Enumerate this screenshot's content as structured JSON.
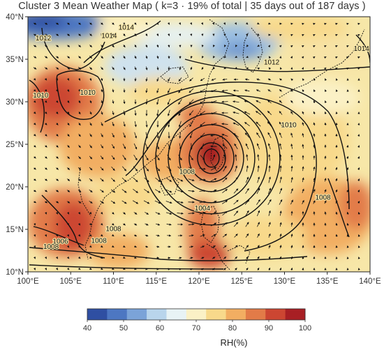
{
  "title": "Cluster 3 Mean Weather Map ( k=3 · 19% of total | 35 days out of 187 days )",
  "map": {
    "lon_range": [
      100,
      140
    ],
    "lat_range": [
      10,
      40
    ],
    "lon_ticks": [
      "100°E",
      "105°E",
      "110°E",
      "115°E",
      "120°E",
      "125°E",
      "130°E",
      "135°E",
      "140°E"
    ],
    "lat_ticks": [
      "10°N",
      "15°N",
      "20°N",
      "25°N",
      "30°N",
      "35°N",
      "40°N"
    ],
    "contour_labels": [
      {
        "text": "1012",
        "lon": 101.8,
        "lat": 37.2
      },
      {
        "text": "1014",
        "lon": 109.5,
        "lat": 37.5
      },
      {
        "text": "1014",
        "lon": 111.5,
        "lat": 38.5
      },
      {
        "text": "1010",
        "lon": 107.0,
        "lat": 30.8
      },
      {
        "text": "1010",
        "lon": 101.5,
        "lat": 30.5
      },
      {
        "text": "1012",
        "lon": 128.5,
        "lat": 34.4
      },
      {
        "text": "1014",
        "lon": 139.0,
        "lat": 36.0
      },
      {
        "text": "1010",
        "lon": 130.5,
        "lat": 27.0
      },
      {
        "text": "1008",
        "lon": 118.6,
        "lat": 21.5
      },
      {
        "text": "1004",
        "lon": 120.4,
        "lat": 17.2
      },
      {
        "text": "1006",
        "lon": 103.8,
        "lat": 13.3
      },
      {
        "text": "1008",
        "lon": 102.7,
        "lat": 12.7
      },
      {
        "text": "1008",
        "lon": 110.0,
        "lat": 14.8
      },
      {
        "text": "1008",
        "lon": 108.3,
        "lat": 13.4
      },
      {
        "text": "1008",
        "lon": 134.5,
        "lat": 18.5
      }
    ],
    "cyclone_center": {
      "lon": 121.3,
      "lat": 23.7
    }
  },
  "colorbar": {
    "label": "RH(%)",
    "ticks": [
      "40",
      "50",
      "60",
      "70",
      "80",
      "90",
      "100"
    ],
    "colors": [
      "#2f4fa2",
      "#4d77c2",
      "#7ba3d8",
      "#b9d5ec",
      "#e8f3f5",
      "#fbf1c6",
      "#f8d98b",
      "#f2ae62",
      "#e27b48",
      "#cc4632",
      "#a81f24"
    ]
  }
}
